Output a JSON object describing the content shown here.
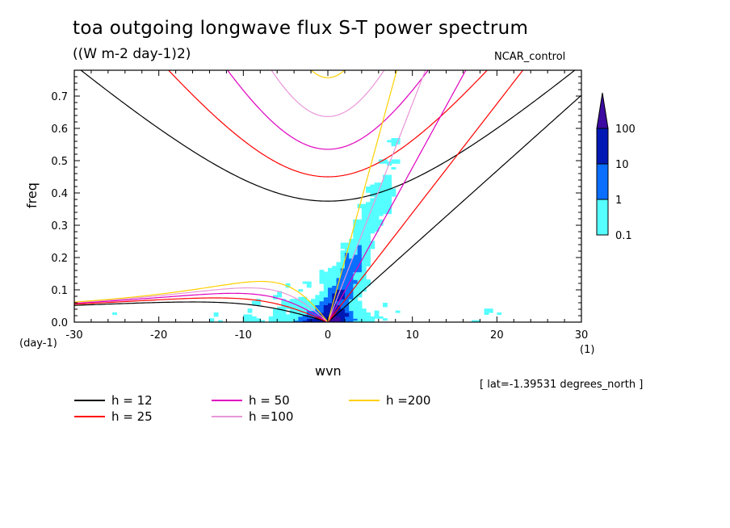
{
  "title": "toa outgoing longwave flux S-T power spectrum",
  "subtitle": "((W m-2 day-1)2)",
  "case_label": "NCAR_control",
  "annotation": "[ lat=-1.39531 degrees_north ]",
  "colors": {
    "level_0_1": "#55ffff",
    "level_1": "#0a6eff",
    "level_10": "#0018b4",
    "level_100": "#3c0aa0",
    "h12": "#000000",
    "h25": "#ff0000",
    "h50": "#e000c0",
    "h100": "#e896d8",
    "h200": "#ffd000"
  },
  "chart_data": {
    "type": "heatmap",
    "xlabel": "wvn",
    "ylabel": "freq",
    "x_unit": "(1)",
    "y_unit": "(day-1)",
    "xlim": [
      -30,
      30
    ],
    "ylim": [
      0.0,
      0.78
    ],
    "x_ticks": [
      "-30",
      "-20",
      "-10",
      "0",
      "10",
      "20",
      "30"
    ],
    "x_tick_values": [
      -30,
      -20,
      -10,
      0,
      10,
      20,
      30
    ],
    "y_ticks": [
      "0.0",
      "0.1",
      "0.2",
      "0.3",
      "0.4",
      "0.5",
      "0.6",
      "0.7"
    ],
    "y_tick_values": [
      0.0,
      0.1,
      0.2,
      0.3,
      0.4,
      0.5,
      0.6,
      0.7
    ],
    "colorbar": {
      "levels": [
        "0.1",
        "1",
        "10",
        "100"
      ],
      "level_values": [
        0.1,
        1,
        10,
        100
      ],
      "extend": "max"
    },
    "dispersion_curves": [
      {
        "name": "h = 12",
        "equivalent_depth": 12,
        "color": "#000000"
      },
      {
        "name": "h = 25",
        "equivalent_depth": 25,
        "color": "#ff0000"
      },
      {
        "name": "h = 50",
        "equivalent_depth": 50,
        "color": "#e000c0"
      },
      {
        "name": "h =100",
        "equivalent_depth": 100,
        "color": "#e896d8"
      },
      {
        "name": "h =200",
        "equivalent_depth": 200,
        "color": "#ffd000"
      }
    ]
  }
}
